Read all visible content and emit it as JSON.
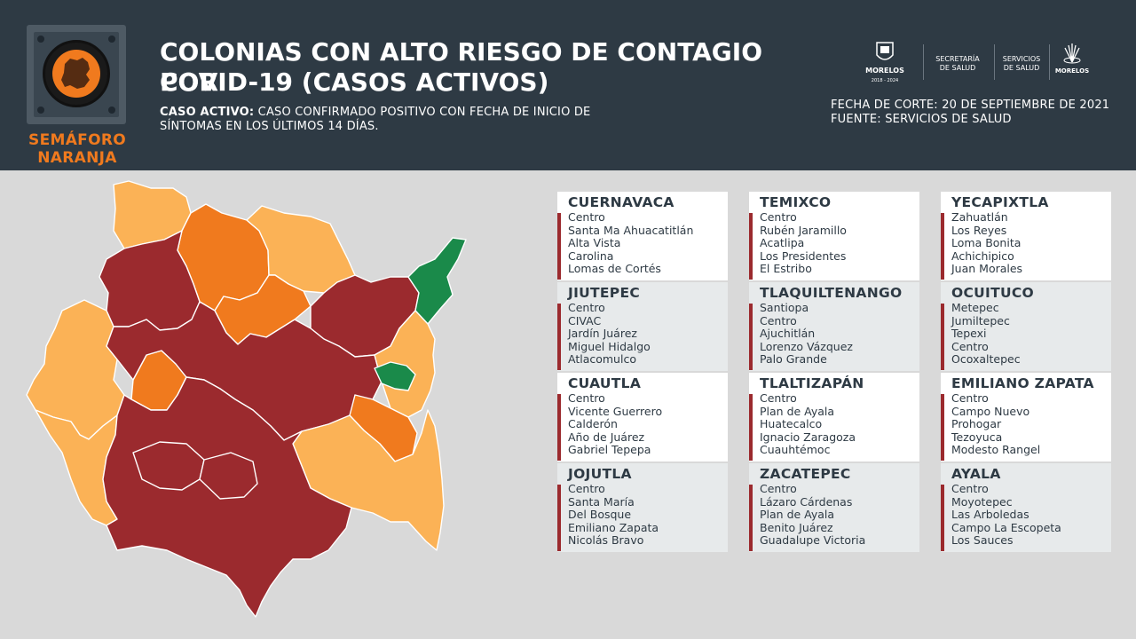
{
  "header": {
    "semaforo_label": "SEMÁFORO\nNARANJA",
    "title_line1": "COLONIAS CON ALTO RIESGO DE CONTAGIO POR",
    "title_line2": "COVID-19 (CASOS ACTIVOS)",
    "definition_term": "CASO ACTIVO:",
    "definition_text": " CASO CONFIRMADO POSITIVO CON FECHA DE INICIO DE SÍNTOMAS EN LOS ÚLTIMOS 14 DÍAS.",
    "fecha_corte": "FECHA DE CORTE: 20 DE SEPTIEMBRE DE 2021",
    "fuente": "FUENTE: SERVICIOS DE SALUD",
    "partner1": "MORELOS",
    "partner1_sub": "2018 - 2024",
    "partner2": "SECRETARÍA\nDE SALUD",
    "partner3": "SERVICIOS\nDE SALUD",
    "partner4": "MORELOS"
  },
  "colors": {
    "header_bg": "#2e3a44",
    "dark_red": "#9b2a2e",
    "orange": "#f07a1e",
    "light_orange": "#fbb256",
    "green": "#1a8a4a"
  },
  "municipios": [
    {
      "name": "CUERNAVACA",
      "colonias": [
        "Centro",
        "Santa Ma Ahuacatitlán",
        "Alta Vista",
        "Carolina",
        "Lomas de Cortés"
      ]
    },
    {
      "name": "TEMIXCO",
      "colonias": [
        "Centro",
        "Rubén Jaramillo",
        "Acatlipa",
        "Los Presidentes",
        "El Estribo"
      ]
    },
    {
      "name": "YECAPIXTLA",
      "colonias": [
        "Zahuatlán",
        "Los Reyes",
        "Loma Bonita",
        "Achichipico",
        "Juan Morales"
      ]
    },
    {
      "name": "JIUTEPEC",
      "colonias": [
        "Centro",
        "CIVAC",
        "Jardín Juárez",
        "Miguel Hidalgo",
        "Atlacomulco"
      ]
    },
    {
      "name": "TLAQUILTENANGO",
      "colonias": [
        "Santiopa",
        "Centro",
        "Ajuchitlán",
        "Lorenzo Vázquez",
        "Palo Grande"
      ]
    },
    {
      "name": "OCUITUCO",
      "colonias": [
        "Metepec",
        "Jumiltepec",
        "Tepexi",
        "Centro",
        "Ocoxaltepec"
      ]
    },
    {
      "name": "CUAUTLA",
      "colonias": [
        "Centro",
        "Vicente Guerrero",
        "Calderón",
        "Año de Juárez",
        "Gabriel Tepepa"
      ]
    },
    {
      "name": "TLALTIZAPÁN",
      "colonias": [
        "Centro",
        "Plan de Ayala",
        "Huatecalco",
        "Ignacio Zaragoza",
        "Cuauhtémoc"
      ]
    },
    {
      "name": "EMILIANO ZAPATA",
      "colonias": [
        "Centro",
        "Campo Nuevo",
        "Prohogar",
        "Tezoyuca",
        "Modesto Rangel"
      ]
    },
    {
      "name": "JOJUTLA",
      "colonias": [
        "Centro",
        "Santa María",
        "Del Bosque",
        "Emiliano Zapata",
        "Nicolás Bravo"
      ]
    },
    {
      "name": "ZACATEPEC",
      "colonias": [
        "Centro",
        "Lázaro Cárdenas",
        "Plan de Ayala",
        "Benito Juárez",
        "Guadalupe Victoria"
      ]
    },
    {
      "name": "AYALA",
      "colonias": [
        "Centro",
        "Moyotepec",
        "Las Arboledas",
        "Campo La Escopeta",
        "Los Sauces"
      ]
    }
  ]
}
